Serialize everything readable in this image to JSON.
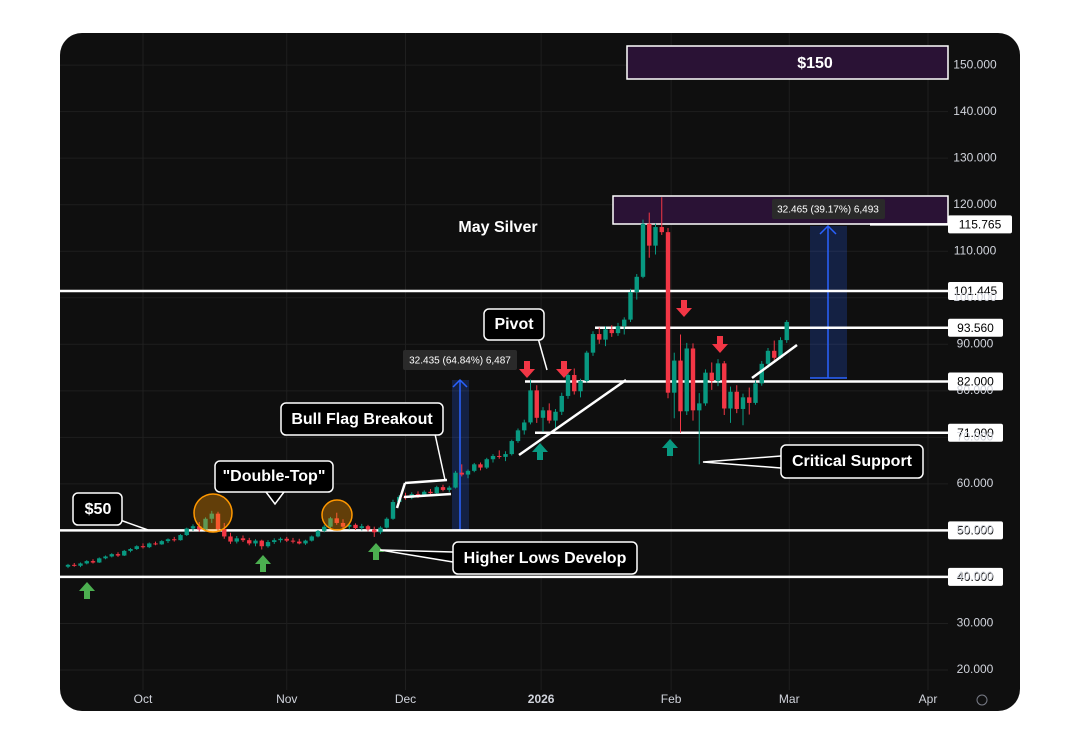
{
  "chart_data": {
    "type": "candlestick",
    "title": "May Silver",
    "x": [
      -12,
      -11,
      -10,
      -9,
      -8,
      -7,
      -6,
      -5,
      -4,
      -3,
      -2,
      -1,
      0,
      1,
      2,
      3,
      4,
      5,
      6,
      7,
      8,
      9,
      10,
      11,
      12,
      13,
      14,
      15,
      16,
      17,
      18,
      19,
      20,
      21,
      22,
      23,
      24,
      25,
      26,
      27,
      28,
      29,
      30,
      31,
      32,
      33,
      34,
      35,
      36,
      37,
      38,
      39,
      40,
      41,
      42,
      43,
      44,
      45,
      46,
      47,
      48,
      49,
      50,
      51,
      52,
      53,
      54,
      55,
      56,
      57,
      58,
      59,
      60,
      61,
      62,
      63,
      64,
      65,
      66,
      67,
      68,
      69,
      70,
      71,
      72,
      73,
      74,
      75,
      76,
      77,
      78,
      79,
      80,
      81,
      82,
      83,
      84,
      85,
      86,
      87,
      88,
      89,
      90,
      91,
      92,
      93,
      94,
      95,
      96,
      97,
      98,
      99,
      100,
      101,
      102,
      103
    ],
    "candles": [
      [
        42.2,
        42.8,
        41.9,
        42.6
      ],
      [
        42.6,
        43.0,
        42.2,
        42.4
      ],
      [
        42.4,
        43.1,
        42.1,
        42.9
      ],
      [
        42.9,
        43.6,
        42.7,
        43.4
      ],
      [
        43.4,
        43.8,
        42.9,
        43.1
      ],
      [
        43.1,
        44.2,
        43.0,
        44.0
      ],
      [
        44.0,
        44.6,
        43.8,
        44.4
      ],
      [
        44.4,
        45.1,
        44.2,
        44.9
      ],
      [
        44.9,
        45.3,
        44.3,
        44.6
      ],
      [
        44.6,
        45.8,
        44.5,
        45.6
      ],
      [
        45.6,
        46.2,
        45.3,
        46.0
      ],
      [
        46.0,
        46.8,
        45.8,
        46.6
      ],
      [
        46.6,
        47.2,
        46.1,
        46.4
      ],
      [
        46.4,
        47.4,
        46.2,
        47.2
      ],
      [
        47.2,
        47.6,
        46.8,
        47.0
      ],
      [
        47.0,
        47.9,
        46.9,
        47.7
      ],
      [
        47.7,
        48.3,
        47.3,
        48.1
      ],
      [
        48.1,
        48.6,
        47.6,
        47.9
      ],
      [
        47.9,
        49.2,
        47.8,
        49.0
      ],
      [
        49.0,
        50.6,
        48.8,
        50.4
      ],
      [
        50.4,
        51.3,
        49.9,
        50.9
      ],
      [
        50.9,
        51.8,
        49.7,
        50.2
      ],
      [
        50.2,
        52.8,
        50.0,
        52.5
      ],
      [
        52.5,
        54.2,
        51.6,
        53.6
      ],
      [
        53.6,
        54.0,
        49.8,
        50.3
      ],
      [
        50.3,
        51.6,
        48.2,
        48.7
      ],
      [
        48.7,
        49.5,
        47.1,
        47.6
      ],
      [
        47.6,
        48.8,
        47.2,
        48.3
      ],
      [
        48.3,
        48.9,
        47.5,
        47.9
      ],
      [
        47.9,
        48.4,
        46.8,
        47.2
      ],
      [
        47.2,
        48.1,
        46.6,
        47.8
      ],
      [
        47.8,
        48.0,
        45.9,
        46.6
      ],
      [
        46.6,
        47.9,
        46.3,
        47.5
      ],
      [
        47.5,
        48.3,
        47.1,
        47.9
      ],
      [
        47.9,
        48.5,
        47.4,
        48.2
      ],
      [
        48.2,
        48.6,
        47.5,
        47.8
      ],
      [
        47.8,
        48.4,
        47.2,
        47.6
      ],
      [
        47.6,
        48.2,
        47.0,
        47.2
      ],
      [
        47.2,
        48.0,
        46.9,
        47.8
      ],
      [
        47.8,
        48.9,
        47.6,
        48.7
      ],
      [
        48.7,
        50.1,
        48.5,
        49.9
      ],
      [
        49.9,
        51.2,
        49.6,
        50.8
      ],
      [
        50.8,
        52.9,
        50.5,
        52.6
      ],
      [
        52.6,
        53.8,
        51.2,
        51.6
      ],
      [
        51.6,
        52.4,
        50.4,
        50.8
      ],
      [
        50.8,
        51.6,
        50.2,
        51.2
      ],
      [
        51.2,
        51.5,
        50.1,
        50.5
      ],
      [
        50.5,
        51.4,
        50.0,
        50.9
      ],
      [
        50.9,
        51.2,
        49.8,
        50.2
      ],
      [
        50.2,
        50.8,
        48.6,
        49.6
      ],
      [
        49.6,
        50.9,
        49.2,
        50.6
      ],
      [
        50.6,
        52.8,
        50.4,
        52.5
      ],
      [
        52.5,
        56.6,
        52.3,
        56.1
      ],
      [
        56.1,
        57.6,
        55.8,
        57.2
      ],
      [
        57.2,
        58.1,
        56.6,
        57.0
      ],
      [
        57.0,
        58.2,
        56.7,
        57.8
      ],
      [
        57.8,
        58.4,
        57.0,
        57.4
      ],
      [
        57.4,
        58.6,
        57.2,
        58.3
      ],
      [
        58.3,
        58.9,
        57.6,
        58.0
      ],
      [
        58.0,
        59.6,
        57.8,
        59.3
      ],
      [
        59.3,
        59.8,
        58.4,
        58.7
      ],
      [
        58.7,
        59.6,
        58.2,
        59.2
      ],
      [
        59.2,
        62.8,
        59.0,
        62.4
      ],
      [
        62.4,
        64.2,
        61.6,
        62.0
      ],
      [
        62.0,
        63.1,
        61.2,
        62.8
      ],
      [
        62.8,
        64.5,
        62.5,
        64.2
      ],
      [
        64.2,
        64.6,
        62.9,
        63.5
      ],
      [
        63.5,
        65.6,
        63.2,
        65.3
      ],
      [
        65.3,
        66.4,
        64.6,
        66.0
      ],
      [
        66.0,
        67.2,
        65.4,
        65.8
      ],
      [
        65.8,
        67.0,
        64.9,
        66.4
      ],
      [
        66.4,
        69.5,
        66.1,
        69.2
      ],
      [
        69.2,
        71.9,
        68.8,
        71.5
      ],
      [
        71.5,
        73.8,
        70.6,
        73.2
      ],
      [
        73.2,
        82.4,
        72.8,
        80.1
      ],
      [
        80.1,
        81.2,
        73.1,
        74.2
      ],
      [
        74.2,
        76.5,
        71.2,
        75.8
      ],
      [
        75.8,
        77.3,
        73.0,
        73.6
      ],
      [
        73.6,
        76.1,
        72.0,
        75.5
      ],
      [
        75.5,
        79.6,
        74.8,
        78.9
      ],
      [
        78.9,
        84.2,
        78.3,
        83.4
      ],
      [
        83.4,
        84.8,
        79.2,
        79.9
      ],
      [
        79.9,
        82.6,
        78.6,
        82.1
      ],
      [
        82.1,
        88.6,
        81.8,
        88.2
      ],
      [
        88.2,
        92.8,
        87.5,
        92.2
      ],
      [
        92.2,
        93.6,
        90.1,
        91.0
      ],
      [
        91.0,
        93.9,
        89.6,
        93.2
      ],
      [
        93.2,
        94.1,
        91.6,
        92.4
      ],
      [
        92.4,
        94.6,
        91.8,
        93.9
      ],
      [
        93.9,
        95.8,
        92.1,
        95.3
      ],
      [
        95.3,
        101.9,
        94.8,
        101.2
      ],
      [
        101.2,
        105.1,
        99.6,
        104.5
      ],
      [
        104.5,
        116.8,
        104.2,
        115.9
      ],
      [
        115.9,
        118.3,
        108.6,
        111.2
      ],
      [
        111.2,
        115.9,
        109.3,
        115.2
      ],
      [
        115.2,
        121.6,
        113.5,
        114.1
      ],
      [
        114.1,
        115.0,
        78.4,
        79.6
      ],
      [
        79.6,
        88.2,
        74.1,
        86.5
      ],
      [
        86.5,
        92.1,
        71.0,
        75.6
      ],
      [
        75.6,
        90.3,
        74.8,
        89.1
      ],
      [
        89.1,
        90.2,
        73.6,
        75.8
      ],
      [
        75.8,
        79.5,
        64.2,
        77.3
      ],
      [
        77.3,
        84.6,
        76.8,
        83.9
      ],
      [
        83.9,
        86.1,
        80.2,
        82.1
      ],
      [
        82.1,
        86.8,
        81.0,
        85.9
      ],
      [
        85.9,
        86.4,
        74.8,
        76.2
      ],
      [
        76.2,
        80.9,
        73.1,
        79.8
      ],
      [
        79.8,
        81.2,
        75.2,
        76.1
      ],
      [
        76.1,
        79.4,
        72.6,
        78.6
      ],
      [
        78.6,
        80.7,
        74.9,
        77.4
      ],
      [
        77.4,
        82.2,
        77.0,
        81.6
      ],
      [
        81.6,
        86.4,
        81.1,
        85.8
      ],
      [
        85.8,
        89.2,
        84.9,
        88.6
      ],
      [
        88.6,
        90.8,
        86.6,
        87.1
      ],
      [
        87.1,
        91.5,
        86.8,
        90.9
      ],
      [
        90.9,
        95.2,
        90.3,
        94.8
      ]
    ],
    "up_color": "#089981",
    "down_color": "#f23645",
    "xlim": [
      -13.28,
      128.8
    ],
    "ylim": [
      15.7,
      156.9
    ],
    "xticks": [
      {
        "value": 0,
        "label": "Oct"
      },
      {
        "value": 23,
        "label": "Nov"
      },
      {
        "value": 42,
        "label": "Dec"
      },
      {
        "value": 63.7,
        "label": "2026"
      },
      {
        "value": 84.5,
        "label": "Feb"
      },
      {
        "value": 103.4,
        "label": "Mar"
      },
      {
        "value": 125.6,
        "label": "Apr"
      }
    ],
    "yticks": [
      {
        "value": 20,
        "label": "20.000"
      },
      {
        "value": 30,
        "label": "30.000"
      },
      {
        "value": 40,
        "label": "40.000"
      },
      {
        "value": 50,
        "label": "50.000"
      },
      {
        "value": 60,
        "label": "60.000"
      },
      {
        "value": 70,
        "label": "70.000"
      },
      {
        "value": 80,
        "label": "80.000"
      },
      {
        "value": 90,
        "label": "90.000"
      },
      {
        "value": 100,
        "label": "100.000"
      },
      {
        "value": 110,
        "label": "110.000"
      },
      {
        "value": 120,
        "label": "120.000"
      },
      {
        "value": 130,
        "label": "130.000"
      },
      {
        "value": 140,
        "label": "140.000"
      },
      {
        "value": 150,
        "label": "150.000"
      }
    ],
    "grid": true,
    "levels": [
      {
        "value": 115.765,
        "label": "115.765"
      },
      {
        "value": 101.445,
        "label": "101.445"
      },
      {
        "value": 93.56,
        "label": "93.560"
      },
      {
        "value": 82,
        "label": "82.000"
      },
      {
        "value": 71,
        "label": "71.000"
      },
      {
        "value": 50,
        "label": "50.000"
      },
      {
        "value": 40,
        "label": "40.000"
      }
    ],
    "annotations": [
      "$150",
      "$50",
      "\"Double-Top\"",
      "Bull Flag Breakout",
      "Pivot",
      "Critical Support",
      "Higher Lows Develop"
    ],
    "measurements": [
      "32.435 (64.84%) 6,487",
      "32.465 (39.17%) 6,493"
    ]
  }
}
